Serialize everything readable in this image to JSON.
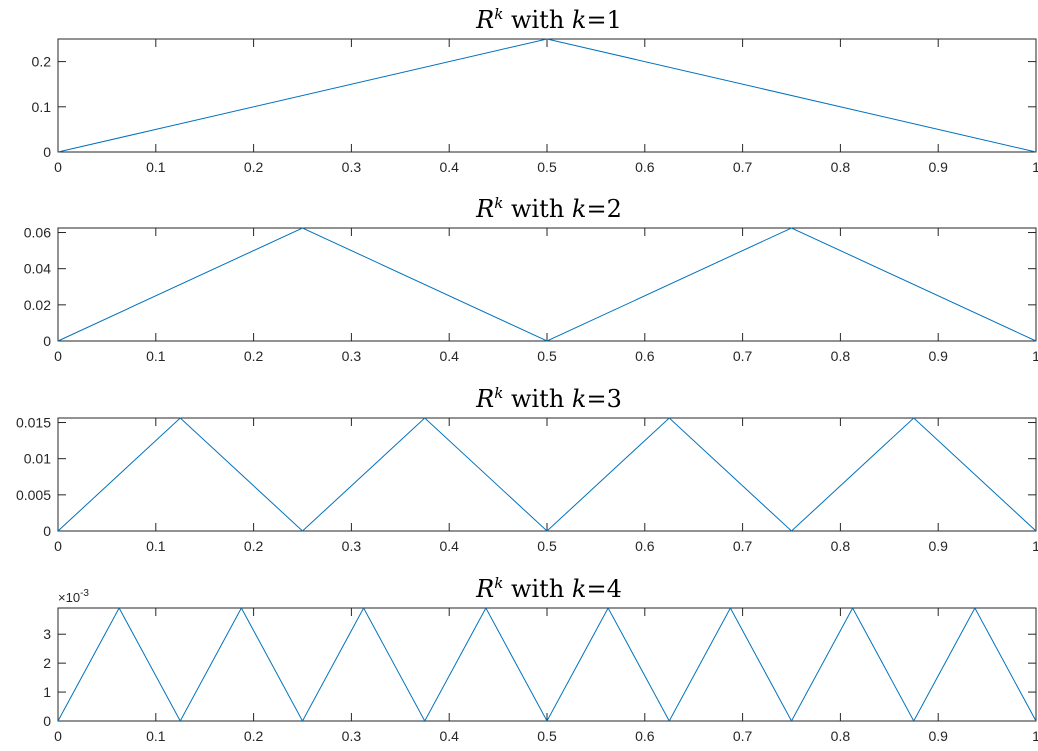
{
  "chart_data": [
    {
      "type": "line",
      "title": {
        "base": "R",
        "sup": "k",
        "mid": " with ",
        "var": "k",
        "eq": "=1"
      },
      "xlim": [
        0,
        1
      ],
      "ylim": [
        0,
        0.25
      ],
      "xticks": [
        0,
        0.1,
        0.2,
        0.3,
        0.4,
        0.5,
        0.6,
        0.7,
        0.8,
        0.9,
        1
      ],
      "xtick_labels": [
        "0",
        "0.1",
        "0.2",
        "0.3",
        "0.4",
        "0.5",
        "0.6",
        "0.7",
        "0.8",
        "0.9",
        "1"
      ],
      "yticks": [
        0,
        0.1,
        0.2
      ],
      "ytick_labels": [
        "0",
        "0.1",
        "0.2"
      ],
      "ytick_multiplier": "",
      "series": [
        {
          "x": [
            0,
            0.5,
            1
          ],
          "y": [
            0,
            0.25,
            0
          ],
          "color": "#0072BD"
        }
      ]
    },
    {
      "type": "line",
      "title": {
        "base": "R",
        "sup": "k",
        "mid": " with ",
        "var": "k",
        "eq": "=2"
      },
      "xlim": [
        0,
        1
      ],
      "ylim": [
        0,
        0.0625
      ],
      "xticks": [
        0,
        0.1,
        0.2,
        0.3,
        0.4,
        0.5,
        0.6,
        0.7,
        0.8,
        0.9,
        1
      ],
      "xtick_labels": [
        "0",
        "0.1",
        "0.2",
        "0.3",
        "0.4",
        "0.5",
        "0.6",
        "0.7",
        "0.8",
        "0.9",
        "1"
      ],
      "yticks": [
        0,
        0.02,
        0.04,
        0.06
      ],
      "ytick_labels": [
        "0",
        "0.02",
        "0.04",
        "0.06"
      ],
      "ytick_multiplier": "",
      "series": [
        {
          "x": [
            0,
            0.25,
            0.5,
            0.75,
            1
          ],
          "y": [
            0,
            0.0625,
            0,
            0.0625,
            0
          ],
          "color": "#0072BD"
        }
      ]
    },
    {
      "type": "line",
      "title": {
        "base": "R",
        "sup": "k",
        "mid": " with ",
        "var": "k",
        "eq": "=3"
      },
      "xlim": [
        0,
        1
      ],
      "ylim": [
        0,
        0.015625
      ],
      "xticks": [
        0,
        0.1,
        0.2,
        0.3,
        0.4,
        0.5,
        0.6,
        0.7,
        0.8,
        0.9,
        1
      ],
      "xtick_labels": [
        "0",
        "0.1",
        "0.2",
        "0.3",
        "0.4",
        "0.5",
        "0.6",
        "0.7",
        "0.8",
        "0.9",
        "1"
      ],
      "yticks": [
        0,
        0.005,
        0.01,
        0.015
      ],
      "ytick_labels": [
        "0",
        "0.005",
        "0.01",
        "0.015"
      ],
      "ytick_multiplier": "",
      "series": [
        {
          "x": [
            0,
            0.125,
            0.25,
            0.375,
            0.5,
            0.625,
            0.75,
            0.875,
            1
          ],
          "y": [
            0,
            0.015625,
            0,
            0.015625,
            0,
            0.015625,
            0,
            0.015625,
            0
          ],
          "color": "#0072BD"
        }
      ]
    },
    {
      "type": "line",
      "title": {
        "base": "R",
        "sup": "k",
        "mid": " with ",
        "var": "k",
        "eq": "=4"
      },
      "xlim": [
        0,
        1
      ],
      "ylim": [
        0,
        0.00390625
      ],
      "xticks": [
        0,
        0.1,
        0.2,
        0.3,
        0.4,
        0.5,
        0.6,
        0.7,
        0.8,
        0.9,
        1
      ],
      "xtick_labels": [
        "0",
        "0.1",
        "0.2",
        "0.3",
        "0.4",
        "0.5",
        "0.6",
        "0.7",
        "0.8",
        "0.9",
        "1"
      ],
      "yticks": [
        0,
        0.001,
        0.002,
        0.003
      ],
      "ytick_labels": [
        "0",
        "1",
        "2",
        "3"
      ],
      "ytick_multiplier": {
        "base": "×10",
        "exp": "-3"
      },
      "series": [
        {
          "x": [
            0,
            0.0625,
            0.125,
            0.1875,
            0.25,
            0.3125,
            0.375,
            0.4375,
            0.5,
            0.5625,
            0.625,
            0.6875,
            0.75,
            0.8125,
            0.875,
            0.9375,
            1
          ],
          "y": [
            0,
            0.00390625,
            0,
            0.00390625,
            0,
            0.00390625,
            0,
            0.00390625,
            0,
            0.00390625,
            0,
            0.00390625,
            0,
            0.00390625,
            0,
            0.00390625,
            0
          ],
          "color": "#0072BD"
        }
      ]
    }
  ]
}
